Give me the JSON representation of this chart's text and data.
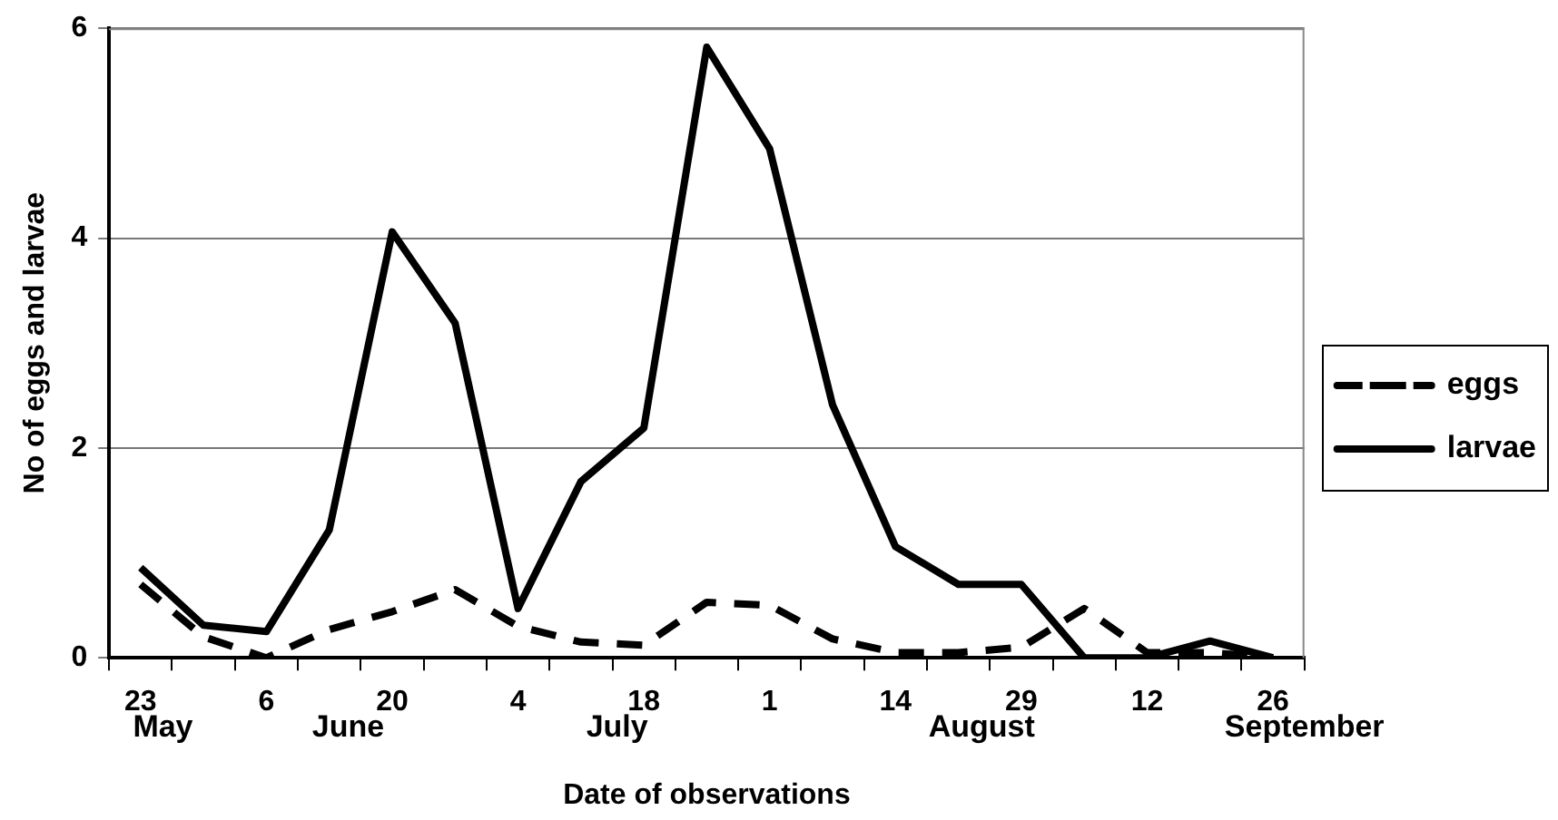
{
  "chart_data": {
    "type": "line",
    "xlabel": "Date of observations",
    "ylabel": "No of eggs and larvae",
    "categories": [
      "23",
      null,
      "6",
      null,
      "20",
      null,
      "4",
      null,
      "18",
      null,
      "1",
      null,
      "14",
      null,
      "29",
      null,
      "12",
      null,
      "26"
    ],
    "series": [
      {
        "name": "eggs",
        "color": "#000000",
        "line_style": "dashed",
        "values": [
          0.7,
          0.2,
          0,
          0.27,
          0.44,
          0.65,
          0.3,
          0.15,
          0.12,
          0.53,
          0.5,
          0.18,
          0.05,
          0.05,
          0.1,
          0.47,
          0.05,
          0.05,
          0
        ]
      },
      {
        "name": "larvae",
        "color": "#000000",
        "line_style": "solid",
        "values": [
          0.86,
          0.31,
          0.25,
          1.22,
          4.06,
          3.19,
          0.47,
          1.68,
          2.19,
          5.82,
          4.85,
          2.41,
          1.06,
          0.7,
          0.7,
          0,
          0,
          0.16,
          0
        ]
      }
    ],
    "annotations": [
      "May",
      "June",
      "July",
      "August",
      "September"
    ],
    "ylim": [
      0,
      6
    ],
    "yticks": [
      0,
      2,
      4,
      6
    ],
    "grid": "y",
    "legend": "right",
    "marker": "none"
  }
}
